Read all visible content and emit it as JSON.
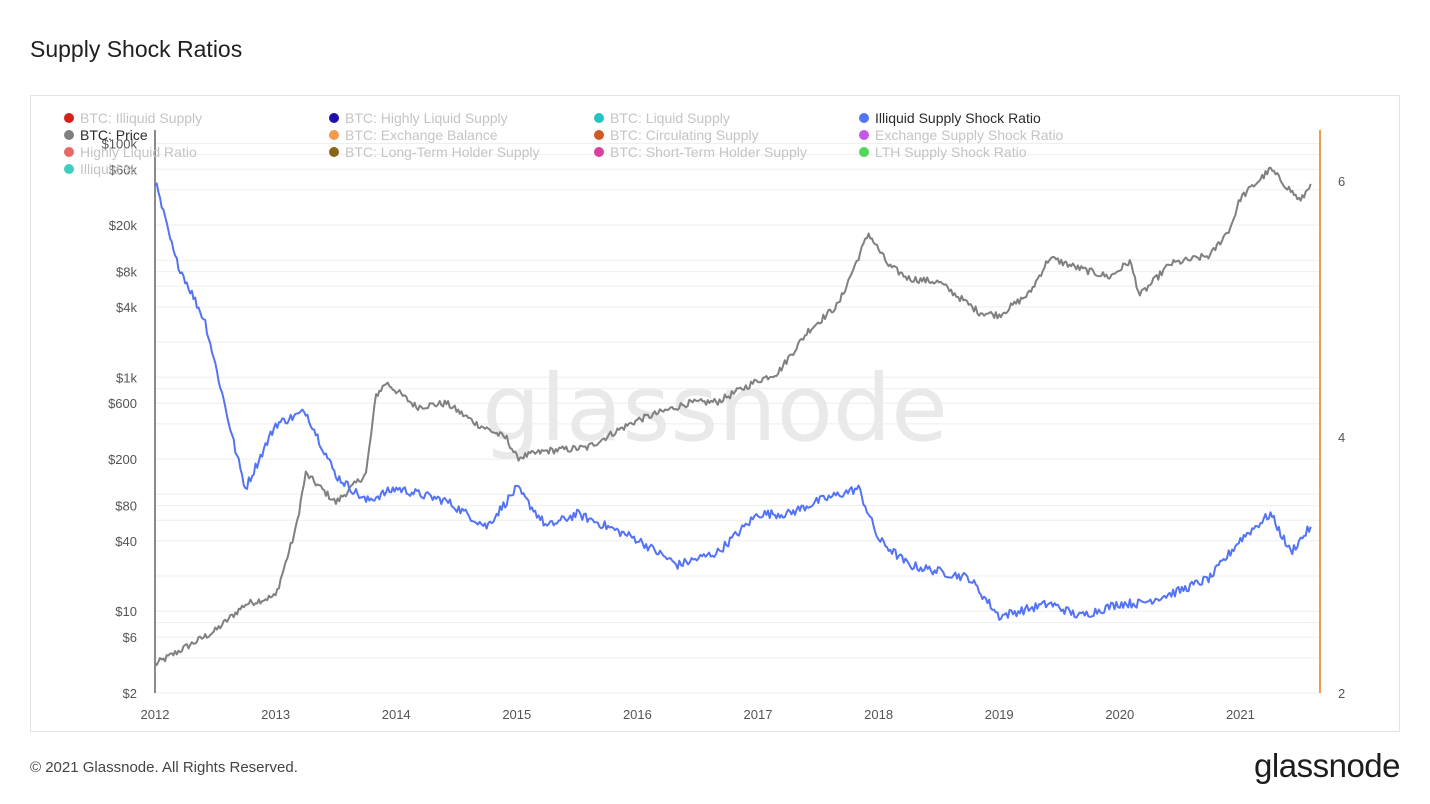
{
  "page": {
    "title": "Supply Shock Ratios",
    "footer": "© 2021 Glassnode. All Rights Reserved.",
    "brand": "glassnode",
    "watermark": "glassnode"
  },
  "legend": [
    {
      "label": "BTC: Illiquid Supply",
      "color": "#d5201c",
      "active": false
    },
    {
      "label": "BTC: Highly Liquid Supply",
      "color": "#1d0fae",
      "active": false
    },
    {
      "label": "BTC: Liquid Supply",
      "color": "#25c3c3",
      "active": false
    },
    {
      "label": "Illiquid Supply Shock Ratio",
      "color": "#5473f5",
      "active": true
    },
    {
      "label": "BTC: Price",
      "color": "#808080",
      "active": true
    },
    {
      "label": "BTC: Exchange Balance",
      "color": "#f39a4b",
      "active": false
    },
    {
      "label": "BTC: Circulating Supply",
      "color": "#d05a25",
      "active": false
    },
    {
      "label": "Exchange Supply Shock Ratio",
      "color": "#c458e5",
      "active": false
    },
    {
      "label": "Highly Liquid Ratio",
      "color": "#e76868",
      "active": false
    },
    {
      "label": "BTC: Long-Term Holder Supply",
      "color": "#8a6417",
      "active": false
    },
    {
      "label": "BTC: Short-Term Holder Supply",
      "color": "#d8409c",
      "active": false
    },
    {
      "label": "LTH Supply Shock Ratio",
      "color": "#51d55a",
      "active": false
    },
    {
      "label": "Illiquid %",
      "color": "#3fcfbf",
      "active": false
    }
  ],
  "chart_data": {
    "type": "line",
    "x_ticks": [
      "2012",
      "2013",
      "2014",
      "2015",
      "2016",
      "2017",
      "2018",
      "2019",
      "2020",
      "2021"
    ],
    "y_left": {
      "scale": "log",
      "ticks": [
        "$100k",
        "$60k",
        "$20k",
        "$8k",
        "$4k",
        "$1k",
        "$600",
        "$200",
        "$80",
        "$40",
        "$10",
        "$6",
        "$2"
      ],
      "range": [
        2,
        130000
      ]
    },
    "y_right": {
      "scale": "linear",
      "ticks": [
        "6",
        "4",
        "2"
      ],
      "range": [
        2,
        6.4
      ]
    },
    "grid": true,
    "series": [
      {
        "name": "BTC: Price",
        "axis": "left",
        "color": "#808080",
        "x": [
          "2012-01",
          "2012-04",
          "2012-07",
          "2012-10",
          "2013-01",
          "2013-03",
          "2013-04",
          "2013-07",
          "2013-10",
          "2013-11",
          "2013-12",
          "2014-03",
          "2014-06",
          "2014-09",
          "2014-12",
          "2015-01",
          "2015-04",
          "2015-08",
          "2015-11",
          "2016-01",
          "2016-06",
          "2016-09",
          "2017-01",
          "2017-03",
          "2017-06",
          "2017-09",
          "2017-12",
          "2018-02",
          "2018-04",
          "2018-07",
          "2018-11",
          "2019-01",
          "2019-04",
          "2019-06",
          "2019-09",
          "2019-12",
          "2020-02",
          "2020-03",
          "2020-06",
          "2020-10",
          "2020-12",
          "2021-01",
          "2021-04",
          "2021-07",
          "2021-08"
        ],
        "y": [
          3.5,
          4.9,
          6.8,
          11.5,
          13.5,
          50,
          150,
          85,
          150,
          700,
          900,
          560,
          600,
          400,
          300,
          205,
          235,
          250,
          350,
          430,
          600,
          620,
          940,
          1100,
          2500,
          4200,
          17000,
          9000,
          7000,
          6500,
          3600,
          3400,
          5200,
          10500,
          8500,
          7200,
          9800,
          5000,
          9300,
          11000,
          19000,
          34000,
          60000,
          32000,
          45000
        ]
      },
      {
        "name": "Illiquid Supply Shock Ratio",
        "axis": "right",
        "color": "#5473f5",
        "x": [
          "2012-01",
          "2012-03",
          "2012-06",
          "2012-09",
          "2012-10",
          "2013-01",
          "2013-04",
          "2013-07",
          "2013-10",
          "2014-01",
          "2014-06",
          "2014-10",
          "2015-01",
          "2015-04",
          "2015-07",
          "2016-01",
          "2016-05",
          "2016-09",
          "2017-01",
          "2017-04",
          "2017-07",
          "2017-11",
          "2018-01",
          "2018-04",
          "2018-10",
          "2019-01",
          "2019-06",
          "2019-09",
          "2020-01",
          "2020-03",
          "2020-07",
          "2020-10",
          "2021-01",
          "2021-04",
          "2021-06",
          "2021-08"
        ],
        "y": [
          6.0,
          5.4,
          4.9,
          3.9,
          3.6,
          4.1,
          4.2,
          3.7,
          3.5,
          3.6,
          3.5,
          3.3,
          3.6,
          3.3,
          3.4,
          3.2,
          3.0,
          3.1,
          3.4,
          3.4,
          3.5,
          3.6,
          3.2,
          3.0,
          2.9,
          2.6,
          2.7,
          2.6,
          2.7,
          2.7,
          2.8,
          2.9,
          3.2,
          3.4,
          3.1,
          3.3
        ]
      }
    ]
  }
}
